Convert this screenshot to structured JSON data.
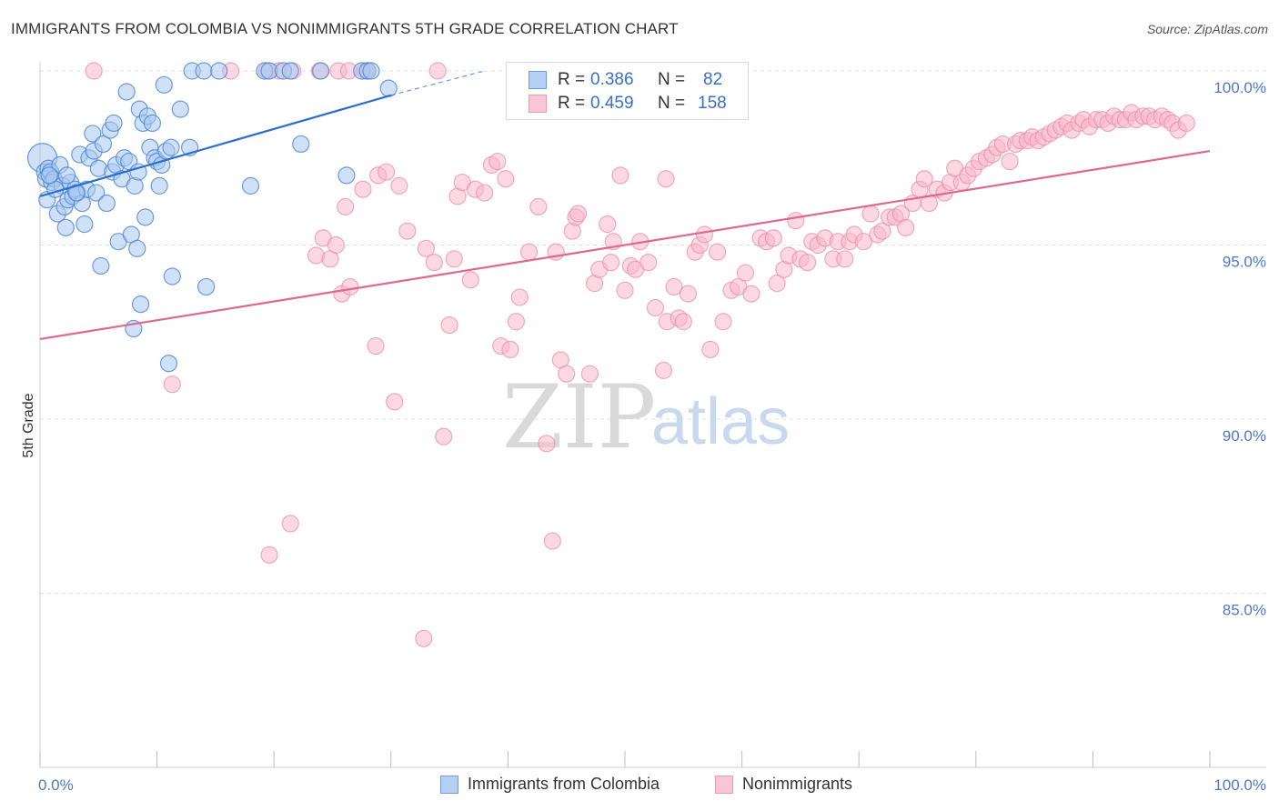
{
  "title": "IMMIGRANTS FROM COLOMBIA VS NONIMMIGRANTS 5TH GRADE CORRELATION CHART",
  "source": "Source: ZipAtlas.com",
  "watermark": {
    "zip": "ZIP",
    "atlas": "atlas"
  },
  "colors": {
    "blue_fill": "#a9c8f0",
    "blue_stroke": "#4a86d4",
    "blue_line": "#2a6fd0",
    "pink_fill": "#f7b8cb",
    "pink_stroke": "#e98aa8",
    "pink_line": "#e06890",
    "grid": "#e2e2e2",
    "tick_text": "#4a7bd0"
  },
  "legend": {
    "rows": [
      {
        "r_label": "R =",
        "r_value": "0.386",
        "n_label": "N =",
        "n_value": "82"
      },
      {
        "r_label": "R =",
        "r_value": "0.459",
        "n_label": "N =",
        "n_value": "158"
      }
    ]
  },
  "bottom_legend": {
    "series1": "Immigrants from Colombia",
    "series2": "Nonimmigrants"
  },
  "chart_data": {
    "type": "scatter",
    "title": "IMMIGRANTS FROM COLOMBIA VS NONIMMIGRANTS 5TH GRADE CORRELATION CHART",
    "xlabel": "",
    "ylabel": "5th Grade",
    "xlim": [
      0,
      100
    ],
    "ylim": [
      80,
      100
    ],
    "x_tick_labels": [
      "0.0%",
      "100.0%"
    ],
    "y_ticks": [
      85,
      90,
      95,
      100
    ],
    "y_tick_labels": [
      "85.0%",
      "90.0%",
      "95.0%",
      "100.0%"
    ],
    "grid": "horizontal dashed",
    "series": [
      {
        "name": "Immigrants from Colombia",
        "R": 0.386,
        "N": 82,
        "trend": {
          "x0": 0,
          "y0": 96.4,
          "x1": 30,
          "y1": 99.3,
          "dashed_to_x": 38,
          "dashed_to_y": 100
        },
        "points": [
          [
            0.2,
            97.5
          ],
          [
            0.4,
            97.1
          ],
          [
            0.5,
            96.9
          ],
          [
            0.6,
            96.3
          ],
          [
            0.7,
            97.2
          ],
          [
            0.9,
            97.1
          ],
          [
            1.0,
            96.8
          ],
          [
            1.2,
            96.9
          ],
          [
            1.5,
            95.9
          ],
          [
            1.7,
            97.3
          ],
          [
            1.9,
            96.7
          ],
          [
            2.1,
            96.1
          ],
          [
            2.2,
            95.5
          ],
          [
            2.4,
            96.3
          ],
          [
            2.6,
            96.8
          ],
          [
            2.8,
            96.4
          ],
          [
            3.0,
            96.6
          ],
          [
            3.2,
            96.5
          ],
          [
            3.4,
            97.6
          ],
          [
            3.6,
            96.2
          ],
          [
            3.8,
            95.6
          ],
          [
            4.0,
            96.6
          ],
          [
            4.2,
            97.5
          ],
          [
            4.5,
            98.2
          ],
          [
            4.6,
            97.7
          ],
          [
            4.8,
            96.5
          ],
          [
            5.0,
            97.2
          ],
          [
            5.2,
            94.4
          ],
          [
            5.4,
            97.9
          ],
          [
            5.7,
            96.2
          ],
          [
            6.0,
            98.3
          ],
          [
            6.2,
            97.1
          ],
          [
            6.3,
            98.5
          ],
          [
            6.5,
            97.3
          ],
          [
            6.7,
            95.1
          ],
          [
            7.0,
            96.9
          ],
          [
            7.2,
            97.5
          ],
          [
            7.4,
            99.4
          ],
          [
            7.6,
            97.4
          ],
          [
            7.8,
            95.3
          ],
          [
            8.0,
            92.6
          ],
          [
            8.1,
            96.7
          ],
          [
            8.3,
            94.9
          ],
          [
            8.4,
            97.1
          ],
          [
            8.5,
            98.9
          ],
          [
            8.6,
            93.3
          ],
          [
            8.8,
            98.5
          ],
          [
            9.0,
            95.8
          ],
          [
            9.2,
            98.7
          ],
          [
            9.4,
            97.8
          ],
          [
            9.6,
            98.5
          ],
          [
            9.8,
            97.5
          ],
          [
            10.0,
            97.4
          ],
          [
            10.2,
            96.7
          ],
          [
            10.4,
            97.3
          ],
          [
            10.6,
            99.6
          ],
          [
            10.8,
            97.7
          ],
          [
            11.0,
            91.6
          ],
          [
            11.2,
            97.8
          ],
          [
            11.3,
            94.1
          ],
          [
            12.0,
            98.9
          ],
          [
            12.8,
            97.8
          ],
          [
            13.0,
            100.0
          ],
          [
            14.0,
            100.0
          ],
          [
            14.2,
            93.8
          ],
          [
            15.3,
            100.0
          ],
          [
            18.0,
            96.7
          ],
          [
            19.2,
            100.0
          ],
          [
            19.6,
            100.0
          ],
          [
            20.8,
            100.0
          ],
          [
            21.4,
            100.0
          ],
          [
            22.3,
            97.9
          ],
          [
            24.0,
            100.0
          ],
          [
            26.2,
            97.0
          ],
          [
            27.5,
            100.0
          ],
          [
            28.0,
            100.0
          ],
          [
            28.3,
            100.0
          ],
          [
            29.8,
            99.5
          ],
          [
            3.1,
            96.5
          ],
          [
            2.3,
            97.0
          ],
          [
            1.3,
            96.6
          ],
          [
            0.8,
            97.0
          ]
        ]
      },
      {
        "name": "Nonimmigrants",
        "R": 0.459,
        "N": 158,
        "trend": {
          "x0": 0,
          "y0": 92.3,
          "x1": 100,
          "y1": 97.7
        },
        "points": [
          [
            4.6,
            100.0
          ],
          [
            11.3,
            91.0
          ],
          [
            16.3,
            100.0
          ],
          [
            19.4,
            100.0
          ],
          [
            20.4,
            100.0
          ],
          [
            21.6,
            100.0
          ],
          [
            23.9,
            100.0
          ],
          [
            25.5,
            100.0
          ],
          [
            26.4,
            100.0
          ],
          [
            27.8,
            100.0
          ],
          [
            28.0,
            100.0
          ],
          [
            34.0,
            100.0
          ],
          [
            19.6,
            86.1
          ],
          [
            21.4,
            87.0
          ],
          [
            23.6,
            94.7
          ],
          [
            24.2,
            95.2
          ],
          [
            24.8,
            94.6
          ],
          [
            25.3,
            95.0
          ],
          [
            25.8,
            93.6
          ],
          [
            26.1,
            96.1
          ],
          [
            26.5,
            93.8
          ],
          [
            27.6,
            96.6
          ],
          [
            28.7,
            92.1
          ],
          [
            28.9,
            97.0
          ],
          [
            29.6,
            97.1
          ],
          [
            30.3,
            90.5
          ],
          [
            30.7,
            96.7
          ],
          [
            31.4,
            95.4
          ],
          [
            32.8,
            83.7
          ],
          [
            33.0,
            94.9
          ],
          [
            33.7,
            94.5
          ],
          [
            34.5,
            89.5
          ],
          [
            35.0,
            92.7
          ],
          [
            35.4,
            94.6
          ],
          [
            35.7,
            96.4
          ],
          [
            36.1,
            96.8
          ],
          [
            36.8,
            94.0
          ],
          [
            37.2,
            96.6
          ],
          [
            38.0,
            96.5
          ],
          [
            38.6,
            97.3
          ],
          [
            39.1,
            97.4
          ],
          [
            39.4,
            92.1
          ],
          [
            39.8,
            96.9
          ],
          [
            40.2,
            92.0
          ],
          [
            40.7,
            92.8
          ],
          [
            41.0,
            93.5
          ],
          [
            41.8,
            94.8
          ],
          [
            42.6,
            96.1
          ],
          [
            43.3,
            89.3
          ],
          [
            43.8,
            86.5
          ],
          [
            44.1,
            94.8
          ],
          [
            44.5,
            91.7
          ],
          [
            45.0,
            91.3
          ],
          [
            45.5,
            95.4
          ],
          [
            45.8,
            95.8
          ],
          [
            46.0,
            95.9
          ],
          [
            47.0,
            91.3
          ],
          [
            47.4,
            93.9
          ],
          [
            47.8,
            94.3
          ],
          [
            48.5,
            95.6
          ],
          [
            48.8,
            94.5
          ],
          [
            49.0,
            95.1
          ],
          [
            49.6,
            97.0
          ],
          [
            50.0,
            93.7
          ],
          [
            50.5,
            94.4
          ],
          [
            50.9,
            94.3
          ],
          [
            51.3,
            95.1
          ],
          [
            52.0,
            94.5
          ],
          [
            52.6,
            93.2
          ],
          [
            53.3,
            91.4
          ],
          [
            53.6,
            92.8
          ],
          [
            54.2,
            93.8
          ],
          [
            54.6,
            92.9
          ],
          [
            55.0,
            92.8
          ],
          [
            55.4,
            93.6
          ],
          [
            56.0,
            94.8
          ],
          [
            56.4,
            95.0
          ],
          [
            56.8,
            95.3
          ],
          [
            57.3,
            92.0
          ],
          [
            57.9,
            94.8
          ],
          [
            58.4,
            92.8
          ],
          [
            59.1,
            93.7
          ],
          [
            59.7,
            93.8
          ],
          [
            60.3,
            94.2
          ],
          [
            60.8,
            93.6
          ],
          [
            61.6,
            95.2
          ],
          [
            62.1,
            95.1
          ],
          [
            62.7,
            95.2
          ],
          [
            63.0,
            93.9
          ],
          [
            63.6,
            94.3
          ],
          [
            64.0,
            94.7
          ],
          [
            64.6,
            95.7
          ],
          [
            65.0,
            94.6
          ],
          [
            65.6,
            94.5
          ],
          [
            66.0,
            95.1
          ],
          [
            66.5,
            95.0
          ],
          [
            67.1,
            95.2
          ],
          [
            67.8,
            94.6
          ],
          [
            68.2,
            95.1
          ],
          [
            68.8,
            94.6
          ],
          [
            69.2,
            95.1
          ],
          [
            69.6,
            95.3
          ],
          [
            70.4,
            95.1
          ],
          [
            71.0,
            95.9
          ],
          [
            71.6,
            95.3
          ],
          [
            72.0,
            95.4
          ],
          [
            72.6,
            95.8
          ],
          [
            73.1,
            95.8
          ],
          [
            73.6,
            95.9
          ],
          [
            74.0,
            95.5
          ],
          [
            74.6,
            96.2
          ],
          [
            75.2,
            96.6
          ],
          [
            75.6,
            96.9
          ],
          [
            76.0,
            96.2
          ],
          [
            76.7,
            96.6
          ],
          [
            77.3,
            96.5
          ],
          [
            77.8,
            96.8
          ],
          [
            78.2,
            97.2
          ],
          [
            78.8,
            96.8
          ],
          [
            79.3,
            97.0
          ],
          [
            79.8,
            97.2
          ],
          [
            80.3,
            97.4
          ],
          [
            80.9,
            97.5
          ],
          [
            81.4,
            97.6
          ],
          [
            81.8,
            97.8
          ],
          [
            82.3,
            97.9
          ],
          [
            82.9,
            97.4
          ],
          [
            83.4,
            97.9
          ],
          [
            83.8,
            98.0
          ],
          [
            84.4,
            98.0
          ],
          [
            84.8,
            98.1
          ],
          [
            85.3,
            98.0
          ],
          [
            85.8,
            98.1
          ],
          [
            86.3,
            98.2
          ],
          [
            86.8,
            98.3
          ],
          [
            87.3,
            98.4
          ],
          [
            87.8,
            98.5
          ],
          [
            88.2,
            98.3
          ],
          [
            88.8,
            98.5
          ],
          [
            89.2,
            98.6
          ],
          [
            89.7,
            98.4
          ],
          [
            90.3,
            98.6
          ],
          [
            90.8,
            98.6
          ],
          [
            91.3,
            98.5
          ],
          [
            91.8,
            98.7
          ],
          [
            92.3,
            98.6
          ],
          [
            92.8,
            98.6
          ],
          [
            93.3,
            98.8
          ],
          [
            93.7,
            98.6
          ],
          [
            94.3,
            98.7
          ],
          [
            94.8,
            98.7
          ],
          [
            95.3,
            98.6
          ],
          [
            95.9,
            98.7
          ],
          [
            96.4,
            98.6
          ],
          [
            96.8,
            98.5
          ],
          [
            97.3,
            98.3
          ],
          [
            98.0,
            98.5
          ],
          [
            53.5,
            96.9
          ]
        ]
      }
    ]
  }
}
